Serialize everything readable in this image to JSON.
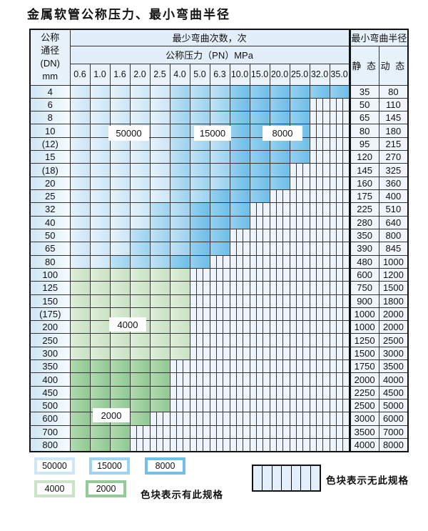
{
  "title": "金属软管公称压力、最小弯曲半径",
  "colors": {
    "cycles_50000": "#cde7f6",
    "cycles_15000": "#9cd3f0",
    "cycles_8000": "#70c0ea",
    "cycles_4000": "#cbe3c6",
    "cycles_2000": "#94ca96",
    "no_spec_fill": "#eef5fc",
    "grid_line": "#333333"
  },
  "table": {
    "dn_header_lines": [
      "公称",
      "通径",
      "(DN)",
      "mm"
    ],
    "cycles_header": "最少弯曲次数，次",
    "pressure_header": "公称压力（PN）MPa",
    "pressures": [
      "0.6",
      "1.0",
      "1.6",
      "2.0",
      "2.5",
      "4.0",
      "5.0",
      "6.3",
      "10.0",
      "15.0",
      "20.0",
      "25.0",
      "32.0",
      "35.0"
    ],
    "radius_header": "最小弯曲半径",
    "static_header": "静 态",
    "dynamic_header": "动 态",
    "rows": [
      {
        "dn": "4",
        "static": "35",
        "dynamic": "80",
        "zone": "blue",
        "colored": 14,
        "med": 5,
        "dark": 8
      },
      {
        "dn": "6",
        "static": "50",
        "dynamic": "110",
        "zone": "blue",
        "colored": 12,
        "med": 5,
        "dark": 8
      },
      {
        "dn": "8",
        "static": "65",
        "dynamic": "145",
        "zone": "blue",
        "colored": 12,
        "med": 5,
        "dark": 8
      },
      {
        "dn": "10",
        "static": "80",
        "dynamic": "180",
        "zone": "blue",
        "colored": 12,
        "med": 5,
        "dark": 8
      },
      {
        "dn": "(12)",
        "static": "95",
        "dynamic": "215",
        "zone": "blue",
        "colored": 12,
        "med": 5,
        "dark": 8
      },
      {
        "dn": "15",
        "static": "120",
        "dynamic": "270",
        "zone": "blue",
        "colored": 12,
        "med": 5,
        "dark": 8
      },
      {
        "dn": "(18)",
        "static": "145",
        "dynamic": "325",
        "zone": "blue",
        "colored": 11,
        "med": 5,
        "dark": 8
      },
      {
        "dn": "20",
        "static": "160",
        "dynamic": "360",
        "zone": "blue",
        "colored": 11,
        "med": 5,
        "dark": 8
      },
      {
        "dn": "25",
        "static": "175",
        "dynamic": "400",
        "zone": "blue",
        "colored": 10,
        "med": 5,
        "dark": 7
      },
      {
        "dn": "32",
        "static": "225",
        "dynamic": "510",
        "zone": "blue",
        "colored": 9,
        "med": 4,
        "dark": 6
      },
      {
        "dn": "40",
        "static": "280",
        "dynamic": "640",
        "zone": "blue",
        "colored": 9,
        "med": 4,
        "dark": 6
      },
      {
        "dn": "50",
        "static": "350",
        "dynamic": "800",
        "zone": "blue",
        "colored": 8,
        "med": 3,
        "dark": 6
      },
      {
        "dn": "65",
        "static": "390",
        "dynamic": "845",
        "zone": "blue",
        "colored": 8,
        "med": 3,
        "dark": 6
      },
      {
        "dn": "80",
        "static": "480",
        "dynamic": "1000",
        "zone": "blue",
        "colored": 7,
        "med": 2,
        "dark": 5
      },
      {
        "dn": "100",
        "static": "600",
        "dynamic": "1200",
        "zone": "green",
        "shade": "light",
        "colored": 6
      },
      {
        "dn": "125",
        "static": "750",
        "dynamic": "1500",
        "zone": "green",
        "shade": "light",
        "colored": 6
      },
      {
        "dn": "150",
        "static": "900",
        "dynamic": "1800",
        "zone": "green",
        "shade": "light",
        "colored": 6
      },
      {
        "dn": "(175)",
        "static": "1000",
        "dynamic": "2000",
        "zone": "green",
        "shade": "light",
        "colored": 6
      },
      {
        "dn": "200",
        "static": "1000",
        "dynamic": "2000",
        "zone": "green",
        "shade": "light",
        "colored": 6
      },
      {
        "dn": "250",
        "static": "1250",
        "dynamic": "2500",
        "zone": "green",
        "shade": "light",
        "colored": 6
      },
      {
        "dn": "300",
        "static": "1500",
        "dynamic": "3000",
        "zone": "green",
        "shade": "light",
        "colored": 6
      },
      {
        "dn": "350",
        "static": "1750",
        "dynamic": "3500",
        "zone": "green",
        "shade": "dark",
        "colored": 5
      },
      {
        "dn": "400",
        "static": "2000",
        "dynamic": "4000",
        "zone": "green",
        "shade": "dark",
        "colored": 5
      },
      {
        "dn": "450",
        "static": "2250",
        "dynamic": "4500",
        "zone": "green",
        "shade": "dark",
        "colored": 5
      },
      {
        "dn": "500",
        "static": "2500",
        "dynamic": "5000",
        "zone": "green",
        "shade": "dark",
        "colored": 5
      },
      {
        "dn": "600",
        "static": "3000",
        "dynamic": "6000",
        "zone": "green",
        "shade": "dark",
        "colored": 4
      },
      {
        "dn": "700",
        "static": "3500",
        "dynamic": "7000",
        "zone": "green",
        "shade": "dark",
        "colored": 3
      },
      {
        "dn": "800",
        "static": "4000",
        "dynamic": "8000",
        "zone": "green",
        "shade": "dark",
        "colored": 3
      }
    ]
  },
  "overlays": {
    "cycles_50000": "50000",
    "cycles_15000": "15000",
    "cycles_8000": "8000",
    "cycles_4000": "4000",
    "cycles_2000": "2000"
  },
  "legend": {
    "items": [
      {
        "label": "50000",
        "color": "#cde7f6",
        "cls": "sw-50000"
      },
      {
        "label": "15000",
        "color": "#9cd3f0",
        "cls": "sw-15000"
      },
      {
        "label": "8000",
        "color": "#70c0ea",
        "cls": "sw-8000"
      },
      {
        "label": "4000",
        "color": "#cbe3c6",
        "cls": "sw-4000"
      },
      {
        "label": "2000",
        "color": "#94ca96",
        "cls": "sw-2000"
      }
    ],
    "has_spec_text": "色块表示有此规格",
    "no_spec_text": "色块表示无此规格"
  }
}
